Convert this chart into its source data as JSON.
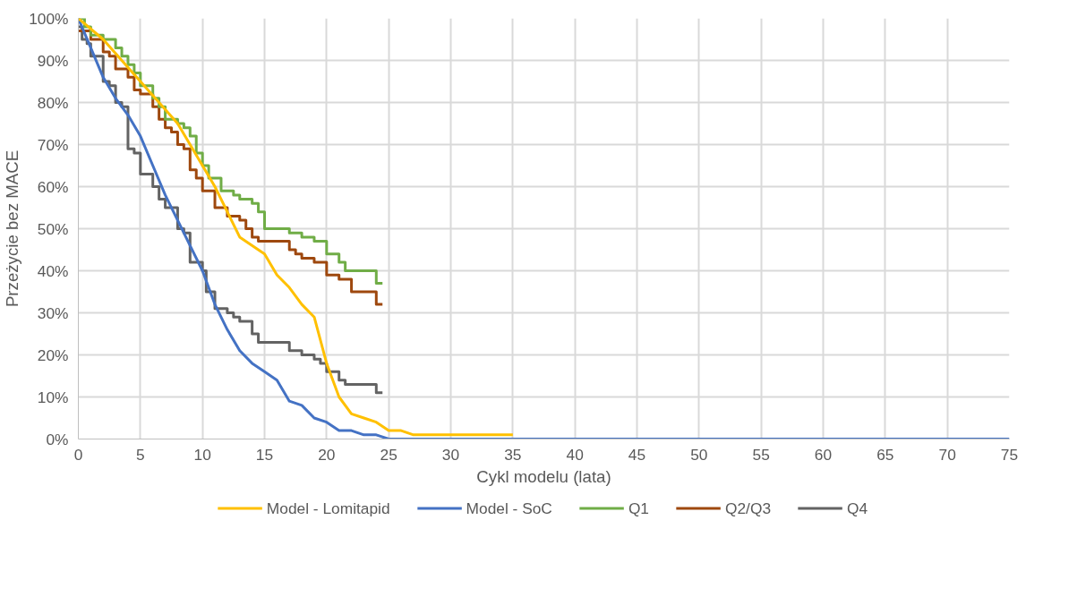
{
  "chart_data": {
    "type": "line",
    "xlabel": "Cykl modelu (lata)",
    "ylabel": "Przeżycie bez MACE",
    "xlim": [
      0,
      75
    ],
    "xticks": [
      0,
      5,
      10,
      15,
      20,
      25,
      30,
      35,
      40,
      45,
      50,
      55,
      60,
      65,
      70,
      75
    ],
    "ylim": [
      0,
      100
    ],
    "yticks": [
      {
        "value": 0,
        "label": "0%"
      },
      {
        "value": 10,
        "label": "10%"
      },
      {
        "value": 20,
        "label": "20%"
      },
      {
        "value": 30,
        "label": "30%"
      },
      {
        "value": 40,
        "label": "40%"
      },
      {
        "value": 50,
        "label": "50%"
      },
      {
        "value": 60,
        "label": "60%"
      },
      {
        "value": 70,
        "label": "70%"
      },
      {
        "value": 80,
        "label": "80%"
      },
      {
        "value": 90,
        "label": "90%"
      },
      {
        "value": 100,
        "label": "100%"
      }
    ],
    "grid": true,
    "legend": "bottom",
    "marker": "none",
    "line_style": "solid",
    "series": [
      {
        "name": "Model - Lomitapid",
        "color": "#ffc000",
        "x": [
          0,
          2,
          5,
          8,
          10,
          11,
          13,
          15,
          16,
          17,
          18,
          19,
          20,
          21,
          22,
          23,
          24,
          25,
          26,
          27,
          28,
          35
        ],
        "values": [
          100,
          95,
          85,
          75,
          65,
          60,
          48,
          44,
          39,
          36,
          32,
          29,
          18,
          10,
          6,
          5,
          4,
          2,
          2,
          1,
          1,
          1
        ]
      },
      {
        "name": "Model - SoC",
        "color": "#4472c4",
        "x": [
          0,
          1,
          2,
          3,
          4,
          5,
          6,
          7,
          8,
          9,
          10,
          11,
          12,
          13,
          14,
          15,
          16,
          17,
          18,
          19,
          20,
          21,
          22,
          23,
          24,
          25,
          75
        ],
        "values": [
          100,
          93,
          86,
          81,
          77,
          72,
          65,
          58,
          52,
          46,
          40,
          32,
          26,
          21,
          18,
          16,
          14,
          9,
          8,
          5,
          4,
          2,
          2,
          1,
          1,
          0,
          0
        ]
      },
      {
        "name": "Q1",
        "color": "#70ad47",
        "type": "step",
        "x": [
          0,
          0.5,
          1,
          2,
          3,
          3.5,
          4,
          4.5,
          5,
          6,
          6.5,
          7,
          8,
          8.5,
          9,
          9.5,
          10,
          10.5,
          11.5,
          12.5,
          13,
          14,
          14.5,
          15,
          17,
          18,
          19,
          20,
          21,
          21.5,
          24,
          24.5
        ],
        "values": [
          100,
          98,
          96,
          95,
          93,
          91,
          89,
          87,
          84,
          81,
          79,
          76,
          75,
          74,
          72,
          68,
          65,
          62,
          59,
          58,
          57,
          56,
          54,
          50,
          49,
          48,
          47,
          44,
          42,
          40,
          37,
          37
        ]
      },
      {
        "name": "Q2/Q3",
        "color": "#9e480e",
        "type": "step",
        "x": [
          0,
          1,
          2,
          2.5,
          3,
          4,
          4.5,
          5,
          6,
          6.5,
          7,
          7.5,
          8,
          8.5,
          9,
          9.5,
          10,
          11,
          12,
          13,
          13.5,
          14,
          14.5,
          17,
          17.5,
          18,
          19,
          20,
          21,
          22,
          24,
          24.5
        ],
        "values": [
          97,
          95,
          92,
          91,
          88,
          86,
          83,
          82,
          79,
          76,
          74,
          73,
          70,
          69,
          64,
          62,
          59,
          55,
          53,
          52,
          50,
          48,
          47,
          45,
          44,
          43,
          42,
          39,
          38,
          35,
          32,
          32
        ]
      },
      {
        "name": "Q4",
        "color": "#636363",
        "type": "step",
        "x": [
          0,
          0.3,
          0.7,
          1,
          2,
          2.5,
          3,
          3.5,
          4,
          4.5,
          5,
          6,
          6.5,
          7,
          8,
          8.5,
          9,
          10,
          10.3,
          11,
          12,
          12.5,
          13,
          14,
          14.5,
          17,
          18,
          19,
          19.5,
          20,
          21,
          21.5,
          24,
          24.5
        ],
        "values": [
          98,
          95,
          94,
          91,
          85,
          84,
          80,
          79,
          69,
          68,
          63,
          60,
          57,
          55,
          50,
          49,
          42,
          40,
          35,
          31,
          30,
          29,
          28,
          25,
          23,
          21,
          20,
          19,
          18,
          16,
          14,
          13,
          11,
          11
        ]
      }
    ]
  }
}
